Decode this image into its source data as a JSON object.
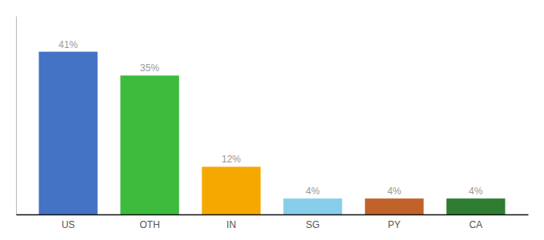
{
  "chart_data": {
    "type": "bar",
    "categories": [
      "US",
      "OTH",
      "IN",
      "SG",
      "PY",
      "CA"
    ],
    "values": [
      41,
      35,
      12,
      4,
      4,
      4
    ],
    "value_labels": [
      "41%",
      "35%",
      "12%",
      "4%",
      "4%",
      "4%"
    ],
    "data_labels": true,
    "colors": [
      "#4472c4",
      "#3dbb3d",
      "#f5a800",
      "#87ceeb",
      "#c0622a",
      "#2e7d32"
    ],
    "ylim": [
      0,
      50
    ],
    "tick_labels": "x"
  }
}
